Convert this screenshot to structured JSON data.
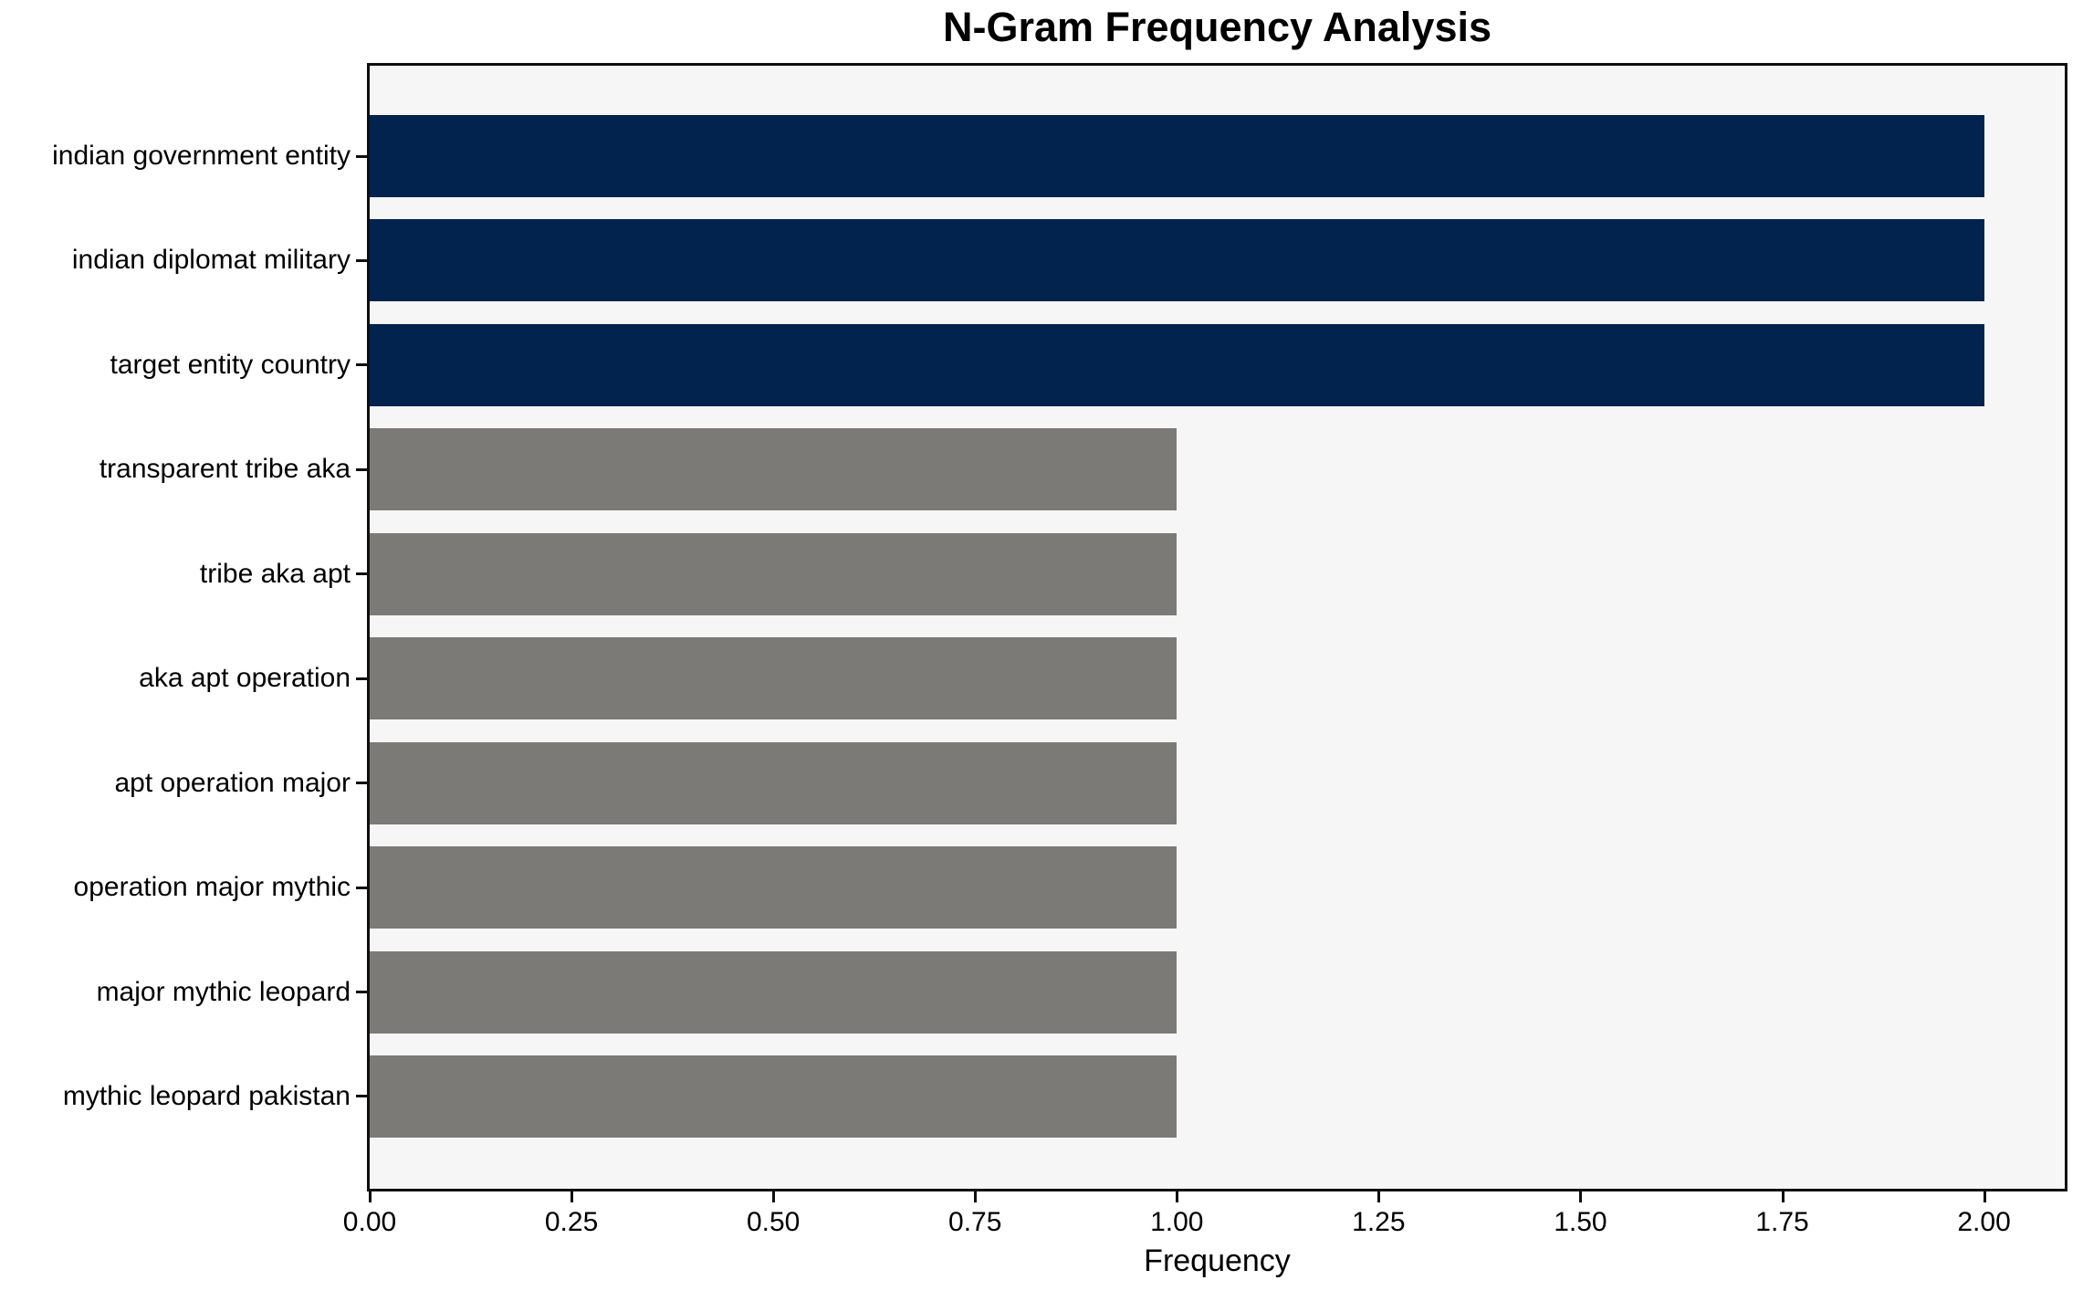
{
  "chart_data": {
    "type": "bar",
    "orientation": "horizontal",
    "title": "N-Gram Frequency Analysis",
    "xlabel": "Frequency",
    "ylabel": "",
    "categories": [
      "indian government entity",
      "indian diplomat military",
      "target entity country",
      "transparent tribe aka",
      "tribe aka apt",
      "aka apt operation",
      "apt operation major",
      "operation major mythic",
      "major mythic leopard",
      "mythic leopard pakistan"
    ],
    "values": [
      2,
      2,
      2,
      1,
      1,
      1,
      1,
      1,
      1,
      1
    ],
    "bar_colors": [
      "#02234d",
      "#02234d",
      "#02234d",
      "#7b7a76",
      "#7b7a76",
      "#7b7a76",
      "#7b7a76",
      "#7b7a76",
      "#7b7a76",
      "#7b7a76"
    ],
    "xlim": [
      0,
      2.1
    ],
    "x_tick_values": [
      0.0,
      0.25,
      0.5,
      0.75,
      1.0,
      1.25,
      1.5,
      1.75,
      2.0
    ],
    "x_tick_labels": [
      "0.00",
      "0.25",
      "0.50",
      "0.75",
      "1.00",
      "1.25",
      "1.50",
      "1.75",
      "2.00"
    ],
    "grid": false,
    "legend": null,
    "colors": {
      "highlight_bar": "#02234d",
      "default_bar": "#7b7a76",
      "plot_background": "#f6f6f6",
      "figure_background": "#ffffff",
      "axis": "#0e0e0e",
      "text": "#000000"
    }
  }
}
